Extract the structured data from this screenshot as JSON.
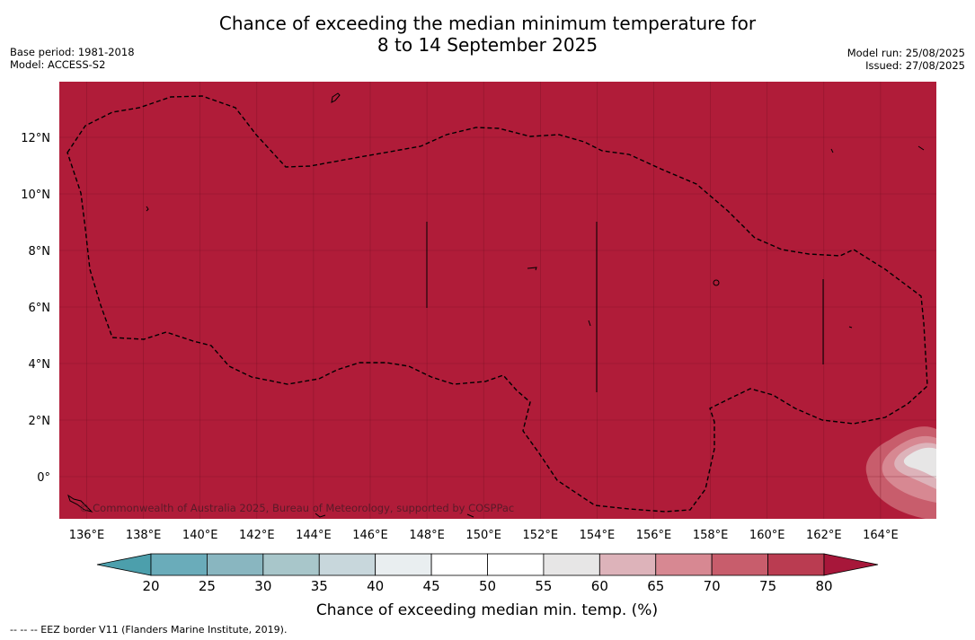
{
  "header": {
    "title_line1": "Chance of exceeding the median minimum temperature for",
    "title_line2": "8 to 14 September 2025",
    "base_period": "Base period: 1981-2018",
    "model": "Model: ACCESS-S2",
    "model_run": "Model run: 25/08/2025",
    "issued": "Issued: 27/08/2025"
  },
  "map": {
    "longitude_ticks": [
      "136°E",
      "138°E",
      "140°E",
      "142°E",
      "144°E",
      "146°E",
      "148°E",
      "150°E",
      "152°E",
      "154°E",
      "156°E",
      "158°E",
      "160°E",
      "162°E",
      "164°E"
    ],
    "latitude_ticks": [
      "12°N",
      "10°N",
      "8°N",
      "6°N",
      "4°N",
      "2°N",
      "0°"
    ],
    "fill_color": "#b01c39",
    "copyright": "© Commonwealth of Australia 2025, Bureau of Meteorology, supported by COSPPac"
  },
  "legend": {
    "title": "Chance of exceeding median min. temp. (%)",
    "tick_labels": [
      "20",
      "25",
      "30",
      "35",
      "40",
      "45",
      "50",
      "55",
      "60",
      "65",
      "70",
      "75",
      "80"
    ],
    "colors": [
      "#4c9fac",
      "#6aacba",
      "#89b6c0",
      "#a8c6ca",
      "#c8d7dc",
      "#e9eef0",
      "#ffffff",
      "#ffffff",
      "#e7e6e6",
      "#ddb3ba",
      "#d78892",
      "#c85d6c",
      "#ba3c51",
      "#a7173a"
    ]
  },
  "footer": {
    "eez_note": "--  --  -- EEZ border V11 (Flanders Marine Institute, 2019)."
  }
}
